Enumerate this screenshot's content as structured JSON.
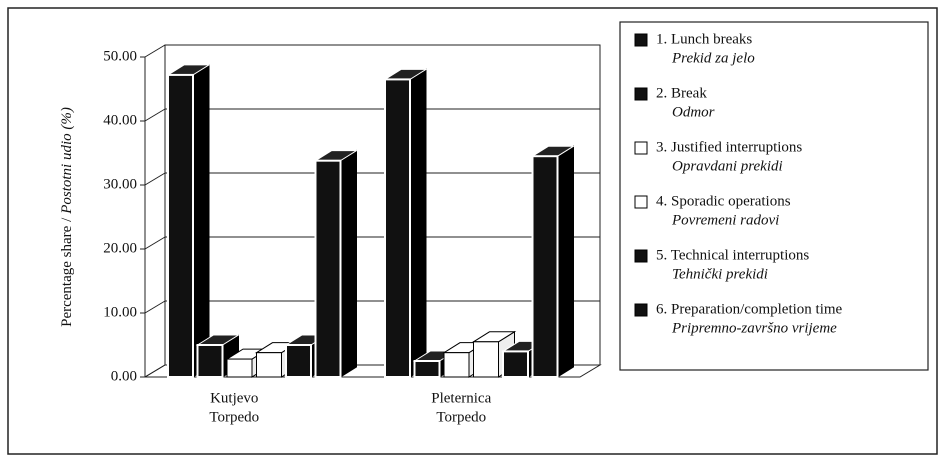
{
  "chart_data": {
    "type": "bar3d",
    "ylabel": [
      "Percentage share /",
      "Postotni udio (%)"
    ],
    "categories": [
      [
        "Kutjevo",
        "Torpedo"
      ],
      [
        "Pleternica",
        "Torpedo"
      ]
    ],
    "series": [
      {
        "name": "1. Lunch breaks",
        "name_local": "Prekid za jelo",
        "color": "#111111",
        "values": [
          47.2,
          46.5
        ]
      },
      {
        "name": "2. Break",
        "name_local": "Odmor",
        "color": "#111111",
        "values": [
          5.0,
          2.5
        ]
      },
      {
        "name": "3. Justified interruptions",
        "name_local": "Opravdani prekidi",
        "color": "#ffffff",
        "values": [
          2.8,
          3.8
        ]
      },
      {
        "name": "4. Sporadic operations",
        "name_local": "Povremeni radovi",
        "color": "#ffffff",
        "values": [
          3.8,
          5.5
        ]
      },
      {
        "name": "5. Technical interruptions",
        "name_local": "Tehnički prekidi",
        "color": "#111111",
        "values": [
          5.0,
          4.0
        ]
      },
      {
        "name": "6. Preparation/completion time",
        "name_local": "Pripremno-završno vrijeme",
        "color": "#111111",
        "values": [
          33.8,
          34.5
        ]
      }
    ],
    "ylim": [
      0,
      50
    ],
    "yticks": [
      {
        "value": 0,
        "label": "0.00"
      },
      {
        "value": 10,
        "label": "10.00"
      },
      {
        "value": 20,
        "label": "20.00"
      },
      {
        "value": 30,
        "label": "30.00"
      },
      {
        "value": 40,
        "label": "40.00"
      },
      {
        "value": 50,
        "label": "50.00"
      }
    ],
    "grid": true
  }
}
